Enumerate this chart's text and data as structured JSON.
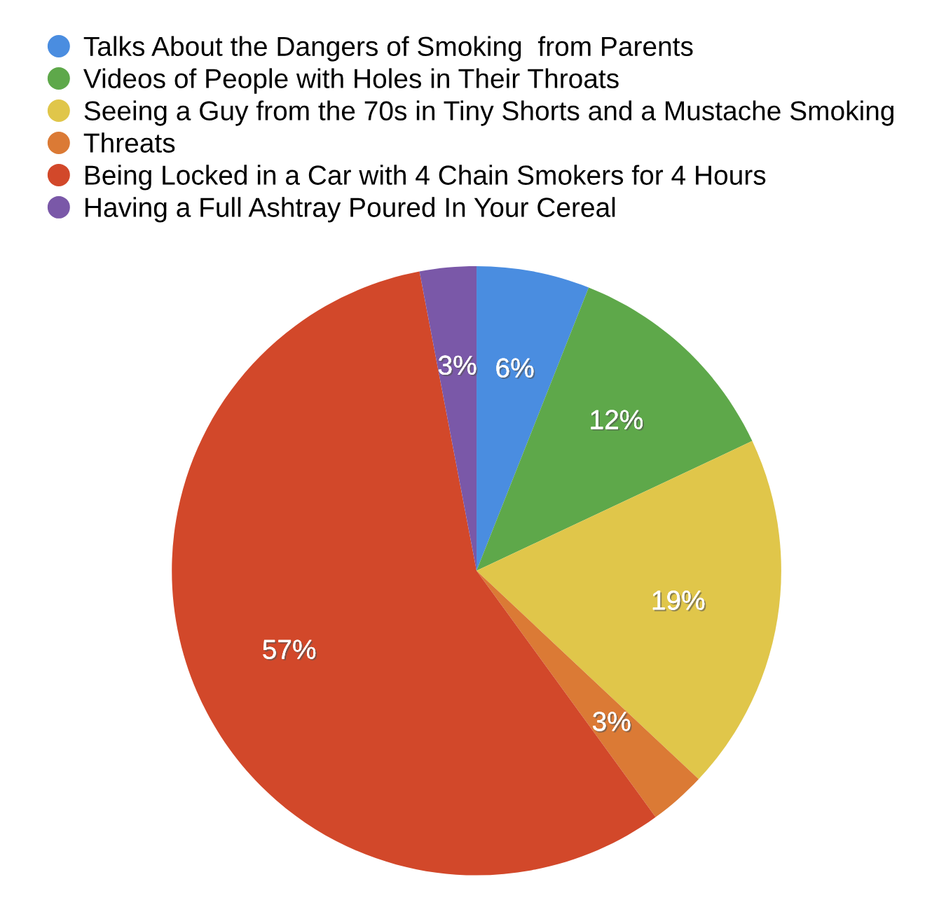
{
  "chart_data": {
    "type": "pie",
    "categories": [
      "Talks About the Dangers of Smoking  from Parents",
      "Videos of People with Holes in Their Throats",
      "Seeing a Guy from the 70s in Tiny Shorts and a Mustache Smoking",
      "Threats",
      "Being Locked in a Car with 4 Chain Smokers for 4 Hours",
      "Having a Full Ashtray Poured In Your Cereal"
    ],
    "values": [
      6,
      12,
      19,
      3,
      57,
      3
    ],
    "value_labels": [
      "6%",
      "12%",
      "19%",
      "3%",
      "57%",
      "3%"
    ],
    "colors": [
      "#4a8de0",
      "#5ea84a",
      "#e0c64a",
      "#db7a35",
      "#d2482a",
      "#7a58a8"
    ],
    "legend": "top left"
  }
}
